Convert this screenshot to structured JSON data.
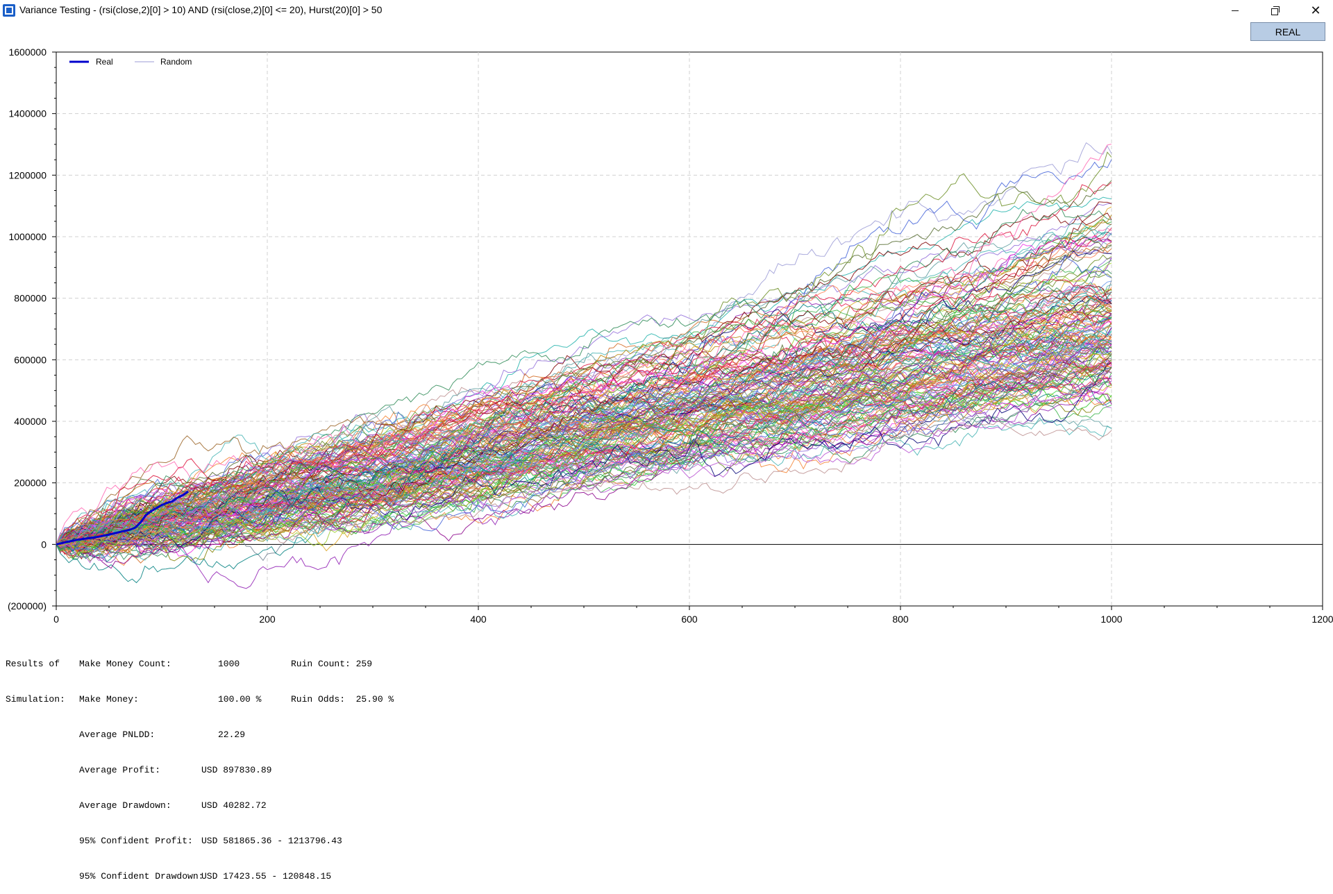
{
  "window": {
    "title": "Variance Testing - (rsi(close,2)[0] > 10) AND (rsi(close,2)[0] <= 20), Hurst(20)[0] > 50",
    "minimize": "—",
    "close": "✕"
  },
  "toolbar": {
    "real_button": "REAL"
  },
  "chart_data": {
    "type": "line",
    "xlim": [
      0,
      1200
    ],
    "ylim": [
      -200000,
      1600000
    ],
    "x_ticks": [
      "0",
      "200",
      "400",
      "600",
      "800",
      "1000",
      "1200"
    ],
    "y_ticks": [
      "1600000",
      "1400000",
      "1200000",
      "1000000",
      "800000",
      "600000",
      "400000",
      "200000",
      "0",
      "(200000)"
    ],
    "grid": true,
    "legend": {
      "position": "top-left",
      "entries": [
        {
          "name": "Real",
          "color": "#0000cc"
        },
        {
          "name": "Random",
          "color": "#9b9bd6"
        }
      ]
    },
    "series": [
      {
        "name": "Real",
        "color": "#0000cc",
        "x": [
          0,
          10,
          20,
          30,
          40,
          50,
          60,
          70,
          75,
          80,
          85,
          90,
          95,
          100,
          105,
          110,
          115,
          120,
          125
        ],
        "y": [
          0,
          8000,
          15000,
          20000,
          25000,
          32000,
          40000,
          48000,
          55000,
          72000,
          95000,
          108000,
          118000,
          128000,
          135000,
          140000,
          152000,
          160000,
          172000
        ]
      },
      {
        "name": "Random",
        "color": "#9b9bd6",
        "note_runs": 1000,
        "x_end": 1000,
        "end_values_sample": [
          1345000,
          1250000,
          1200000,
          1150000,
          1100000,
          1050000,
          1000000,
          950000,
          900000,
          850000,
          800000,
          750000,
          700000,
          650000,
          600000,
          550000,
          520000,
          480000
        ],
        "low_run_end": 478000,
        "high_run_end": 1345000
      }
    ]
  },
  "results": {
    "header_line1": "Results of",
    "header_line2": "Simulation:",
    "make_money_count_label": "Make Money Count:",
    "make_money_count_value": "1000",
    "ruin_count_label": "Ruin Count: 259",
    "make_money_label": "Make Money:",
    "make_money_value": "100.00 %",
    "ruin_odds_label": "Ruin Odds:  25.90 %",
    "average_pnldd_label": "Average PNLDD:",
    "average_pnldd_value": "22.29",
    "average_profit_label": "Average Profit:",
    "average_profit_value": "USD 897830.89",
    "average_drawdown_label": "Average Drawdown:",
    "average_drawdown_value": "USD 40282.72",
    "confident_profit_label": "95% Confident Profit:",
    "confident_profit_value": "USD 581865.36 - 1213796.43",
    "confident_drawdown_label": "95% Confident Drawdown:",
    "confident_drawdown_value": "USD 17423.55 - 120848.15"
  }
}
